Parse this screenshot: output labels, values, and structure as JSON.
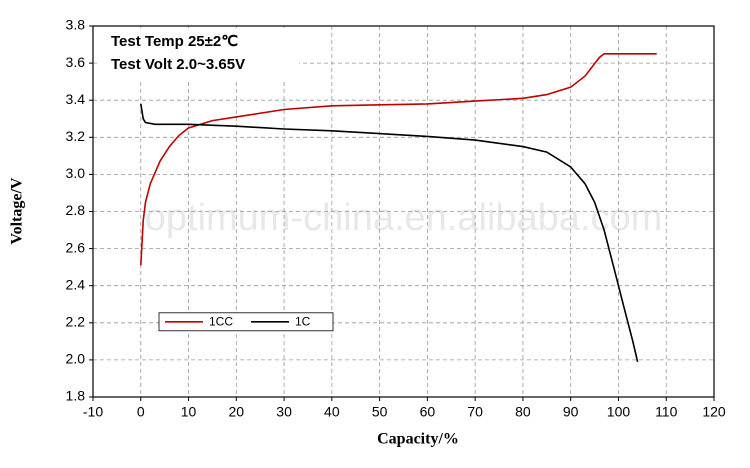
{
  "chart_data": {
    "type": "line",
    "xlabel": "Capacity/%",
    "ylabel": "Voltage/V",
    "annotations": [
      "Test Temp 25±2℃",
      "Test Volt 2.0~3.65V"
    ],
    "watermark": "optimum-china.en.alibaba.com",
    "xlim": [
      -10,
      120
    ],
    "xticks": [
      -10,
      0,
      10,
      20,
      30,
      40,
      50,
      60,
      70,
      80,
      90,
      100,
      110,
      120
    ],
    "ylim": [
      1.8,
      3.8
    ],
    "yticks": [
      1.8,
      {
        "value": 2,
        "label": "2.0"
      },
      2.2,
      2.4,
      2.6,
      2.8,
      {
        "value": 3,
        "label": "3.0"
      },
      3.2,
      3.4,
      3.6,
      3.8
    ],
    "grid": true,
    "legend_position": "lower left",
    "series": [
      {
        "name": "1CC",
        "color": "#c00000",
        "x": [
          0,
          0.5,
          1,
          2,
          4,
          6,
          8,
          10,
          15,
          20,
          30,
          40,
          50,
          60,
          70,
          80,
          85,
          90,
          93,
          96,
          97,
          108
        ],
        "values": [
          2.51,
          2.75,
          2.85,
          2.95,
          3.07,
          3.15,
          3.21,
          3.25,
          3.29,
          3.31,
          3.35,
          3.37,
          3.375,
          3.38,
          3.395,
          3.41,
          3.43,
          3.47,
          3.53,
          3.63,
          3.65,
          3.65
        ]
      },
      {
        "name": "1C",
        "color": "#000000",
        "x": [
          0,
          0.5,
          1,
          3,
          10,
          20,
          30,
          40,
          50,
          60,
          70,
          80,
          85,
          90,
          93,
          95,
          97,
          99,
          101,
          103,
          104
        ],
        "values": [
          3.38,
          3.3,
          3.28,
          3.27,
          3.27,
          3.26,
          3.245,
          3.235,
          3.22,
          3.205,
          3.185,
          3.15,
          3.12,
          3.04,
          2.95,
          2.85,
          2.7,
          2.5,
          2.3,
          2.1,
          1.99
        ]
      }
    ]
  }
}
